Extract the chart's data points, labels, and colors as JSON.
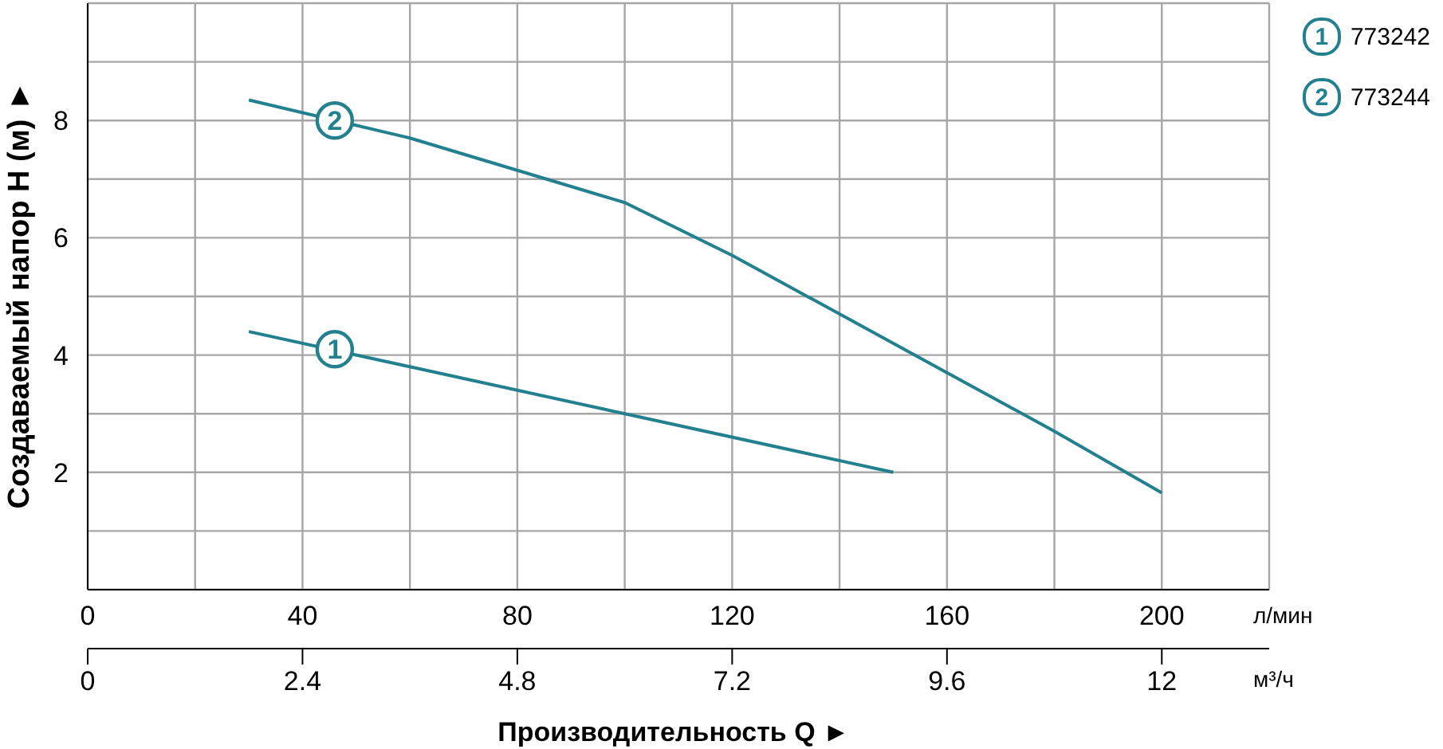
{
  "chart_data": {
    "type": "line",
    "xlabel": "Производительность Q ►",
    "ylabel": "Создаваемый напор H (м) ►",
    "xlim": [
      0,
      220
    ],
    "xticks": [
      0,
      {
        "value": 20,
        "label": null
      },
      40,
      {
        "value": 60,
        "label": null
      },
      80,
      {
        "value": 100,
        "label": null
      },
      120,
      {
        "value": 140,
        "label": null
      },
      160,
      {
        "value": 180,
        "label": null
      },
      200,
      {
        "value": 220,
        "label": null
      }
    ],
    "x2lim": [
      0,
      13.2
    ],
    "x2ticks": [
      {
        "value": 0,
        "label": "0"
      },
      2.4,
      4.8,
      7.2,
      9.6,
      12
    ],
    "ylim": [
      0,
      10
    ],
    "yticks": [
      {
        "value": 0,
        "label": null
      },
      {
        "value": 1,
        "label": null
      },
      2,
      {
        "value": 3,
        "label": null
      },
      4,
      {
        "value": 5,
        "label": null
      },
      6,
      {
        "value": 7,
        "label": null
      },
      8,
      {
        "value": 9,
        "label": null
      },
      {
        "value": 10,
        "label": null
      }
    ],
    "grid": true,
    "legend": "top right",
    "marker": "none",
    "line_style": "solid",
    "series": [
      {
        "name": "773242",
        "color": "#23808e",
        "x": [
          30,
          60,
          100,
          150
        ],
        "values": [
          4.4,
          3.8,
          3.0,
          2.0
        ]
      },
      {
        "name": "773244",
        "color": "#23808e",
        "x": [
          30,
          60,
          80,
          100,
          120,
          140,
          160,
          180,
          200
        ],
        "values": [
          8.35,
          7.7,
          7.15,
          6.6,
          5.7,
          4.7,
          3.7,
          2.7,
          1.65
        ]
      }
    ],
    "annotations": [
      {
        "text": "1",
        "x": 46,
        "y": 4.1
      },
      {
        "text": "2",
        "x": 46,
        "y": 8.0
      },
      "л/мин",
      "м³/ч"
    ]
  }
}
